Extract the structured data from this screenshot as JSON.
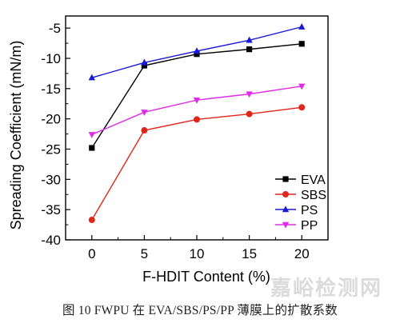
{
  "chart_data": {
    "type": "line",
    "xlabel": "F-HDIT Content (%)",
    "ylabel": "Spreading Coefficient (mN/m)",
    "x": [
      0,
      5,
      10,
      15,
      20
    ],
    "xlim": [
      -2.5,
      22.5
    ],
    "ylim": [
      -40,
      -3
    ],
    "xticks": [
      "0",
      "5",
      "10",
      "15",
      "20"
    ],
    "yticks": [
      "-40",
      "-35",
      "-30",
      "-25",
      "-20",
      "-15",
      "-10",
      "-5"
    ],
    "legend_position": "bottom-right",
    "series": [
      {
        "name": "EVA",
        "values": [
          -24.8,
          -11.2,
          -9.3,
          -8.5,
          -7.6
        ],
        "color": "#000000",
        "marker": "square"
      },
      {
        "name": "SBS",
        "values": [
          -36.7,
          -21.9,
          -20.1,
          -19.2,
          -18.1
        ],
        "color": "#e0251b",
        "marker": "circle"
      },
      {
        "name": "PS",
        "values": [
          -13.2,
          -10.7,
          -8.8,
          -7.0,
          -4.8
        ],
        "color": "#1a1ad6",
        "marker": "triangle-up"
      },
      {
        "name": "PP",
        "values": [
          -22.6,
          -18.9,
          -16.9,
          -15.9,
          -14.6
        ],
        "color": "#e02be8",
        "marker": "triangle-down"
      }
    ]
  },
  "caption": "图 10   FWPU 在 EVA/SBS/PS/PP 薄膜上的扩散系数",
  "watermark": "嘉峪检测网"
}
